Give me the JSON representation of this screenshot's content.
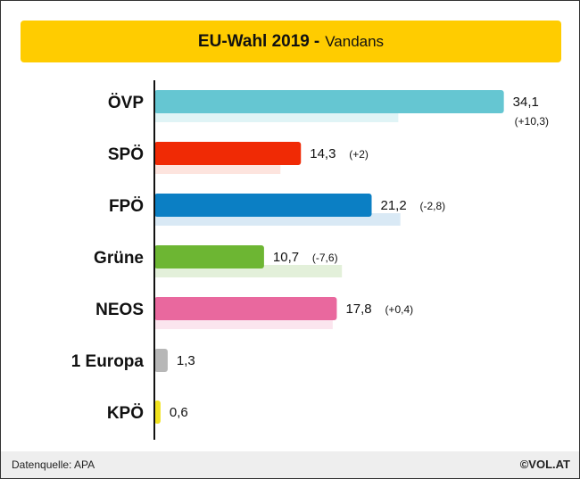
{
  "header": {
    "title": "EU-Wahl 2019",
    "separator": "-",
    "subtitle": "Vandans"
  },
  "footer": {
    "source": "Datenquelle: APA",
    "brand": "©VOL.AT"
  },
  "chart_data": {
    "type": "bar",
    "orientation": "horizontal",
    "categories": [
      "ÖVP",
      "SPÖ",
      "FPÖ",
      "Grüne",
      "NEOS",
      "1 Europa",
      "KPÖ"
    ],
    "series": [
      {
        "values": [
          34.1,
          14.3,
          21.2,
          10.7,
          17.8,
          1.3,
          0.6
        ]
      },
      {
        "values": [
          23.8,
          12.3,
          24.0,
          18.3,
          17.4,
          null,
          null
        ]
      }
    ],
    "value_labels": [
      "34,1",
      "14,3",
      "21,2",
      "10,7",
      "17,8",
      "1,3",
      "0,6"
    ],
    "change_labels": [
      "(+10,3)",
      "(+2)",
      "(-2,8)",
      "(-7,6)",
      "(+0,4)",
      "",
      ""
    ],
    "colors": [
      "#65c6d2",
      "#f02a05",
      "#0b7fc4",
      "#6db633",
      "#e9689e",
      "#b7b7b7",
      "#f1e21e"
    ],
    "previous_colors": [
      "#e0f4f6",
      "#fde4de",
      "#d9e9f5",
      "#e3f0da",
      "#fbe5ee",
      "#eeeeee",
      "#fdfad8"
    ],
    "xlim": [
      0,
      35
    ],
    "grid": false,
    "legend": "none"
  }
}
